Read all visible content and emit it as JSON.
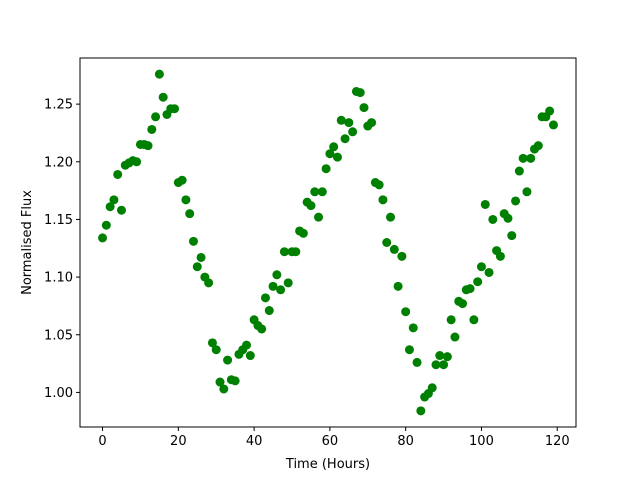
{
  "chart_data": {
    "type": "scatter",
    "xlabel": "Time (Hours)",
    "ylabel": "Normalised Flux",
    "color": "#008000",
    "x": [
      0,
      1,
      2,
      3,
      4,
      5,
      6,
      7,
      8,
      9,
      10,
      11,
      12,
      13,
      14,
      15,
      16,
      17,
      18,
      19,
      20,
      21,
      22,
      23,
      24,
      25,
      26,
      27,
      28,
      29,
      30,
      31,
      32,
      33,
      34,
      35,
      36,
      37,
      38,
      39,
      40,
      41,
      42,
      43,
      44,
      45,
      46,
      47,
      48,
      49,
      50,
      51,
      52,
      53,
      54,
      55,
      56,
      57,
      58,
      59,
      60,
      61,
      62,
      63,
      64,
      65,
      66,
      67,
      68,
      69,
      70,
      71,
      72,
      73,
      74,
      75,
      76,
      77,
      78,
      79,
      80,
      81,
      82,
      83,
      84,
      85,
      86,
      87,
      88,
      89,
      90,
      91,
      92,
      93,
      94,
      95,
      96,
      97,
      98,
      99,
      100,
      101,
      102,
      103,
      104,
      105,
      106,
      107,
      108,
      109,
      110,
      111,
      112,
      113,
      114,
      115,
      116,
      117,
      118,
      119
    ],
    "values": [
      1.134,
      1.145,
      1.161,
      1.167,
      1.189,
      1.158,
      1.197,
      1.199,
      1.201,
      1.2,
      1.215,
      1.215,
      1.214,
      1.228,
      1.239,
      1.276,
      1.256,
      1.241,
      1.246,
      1.246,
      1.182,
      1.184,
      1.167,
      1.155,
      1.131,
      1.109,
      1.117,
      1.1,
      1.095,
      1.043,
      1.037,
      1.009,
      1.003,
      1.028,
      1.011,
      1.01,
      1.033,
      1.037,
      1.041,
      1.032,
      1.063,
      1.058,
      1.055,
      1.082,
      1.071,
      1.092,
      1.102,
      1.089,
      1.122,
      1.095,
      1.122,
      1.122,
      1.14,
      1.138,
      1.165,
      1.162,
      1.174,
      1.152,
      1.174,
      1.194,
      1.207,
      1.213,
      1.204,
      1.236,
      1.22,
      1.234,
      1.226,
      1.261,
      1.26,
      1.247,
      1.231,
      1.234,
      1.182,
      1.18,
      1.167,
      1.13,
      1.152,
      1.124,
      1.092,
      1.118,
      1.07,
      1.037,
      1.056,
      1.026,
      0.984,
      0.996,
      0.999,
      1.004,
      1.024,
      1.032,
      1.024,
      1.031,
      1.063,
      1.048,
      1.079,
      1.077,
      1.089,
      1.09,
      1.063,
      1.096,
      1.109,
      1.163,
      1.104,
      1.15,
      1.123,
      1.118,
      1.155,
      1.151,
      1.136,
      1.166,
      1.192,
      1.203,
      1.174,
      1.203,
      1.211,
      1.214,
      1.239,
      1.239,
      1.244,
      1.232
    ],
    "xlim": [
      -5.95,
      124.95
    ],
    "xticks": [
      0,
      20,
      40,
      60,
      80,
      100,
      120
    ],
    "ylim": [
      0.97,
      1.29
    ],
    "yticks": [
      {
        "value": 1.0,
        "label": "1.00"
      },
      {
        "value": 1.05,
        "label": "1.05"
      },
      {
        "value": 1.1,
        "label": "1.10"
      },
      {
        "value": 1.15,
        "label": "1.15"
      },
      {
        "value": 1.2,
        "label": "1.20"
      },
      {
        "value": 1.25,
        "label": "1.25"
      }
    ],
    "grid": false
  }
}
